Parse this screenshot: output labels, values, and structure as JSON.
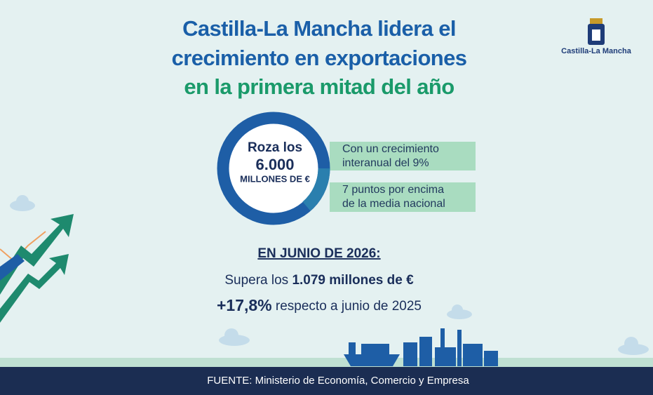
{
  "title": {
    "lines": [
      "Castilla-La Mancha lidera el",
      "crecimiento en exportaciones",
      "en la primera mitad del año"
    ]
  },
  "logo": {
    "label": "Castilla-La Mancha"
  },
  "ring": {
    "top": "Roza los",
    "figure": "6.000",
    "unit": "MILLONES DE €"
  },
  "boxes": [
    {
      "lines": [
        "Con un crecimiento",
        "interanual del 9%"
      ]
    },
    {
      "lines": [
        "7 puntos por encima",
        "de la media nacional"
      ]
    }
  ],
  "june": {
    "heading": "EN JUNIO DE 2026:",
    "line1": {
      "text": "Supera los ",
      "bold": "1.079 millones de €"
    },
    "line2": {
      "bold": "+17,8%",
      "text": " respecto a junio de 2025"
    }
  },
  "footer": {
    "source": "FUENTE: Ministerio de Economía, Comercio y Empresa"
  }
}
